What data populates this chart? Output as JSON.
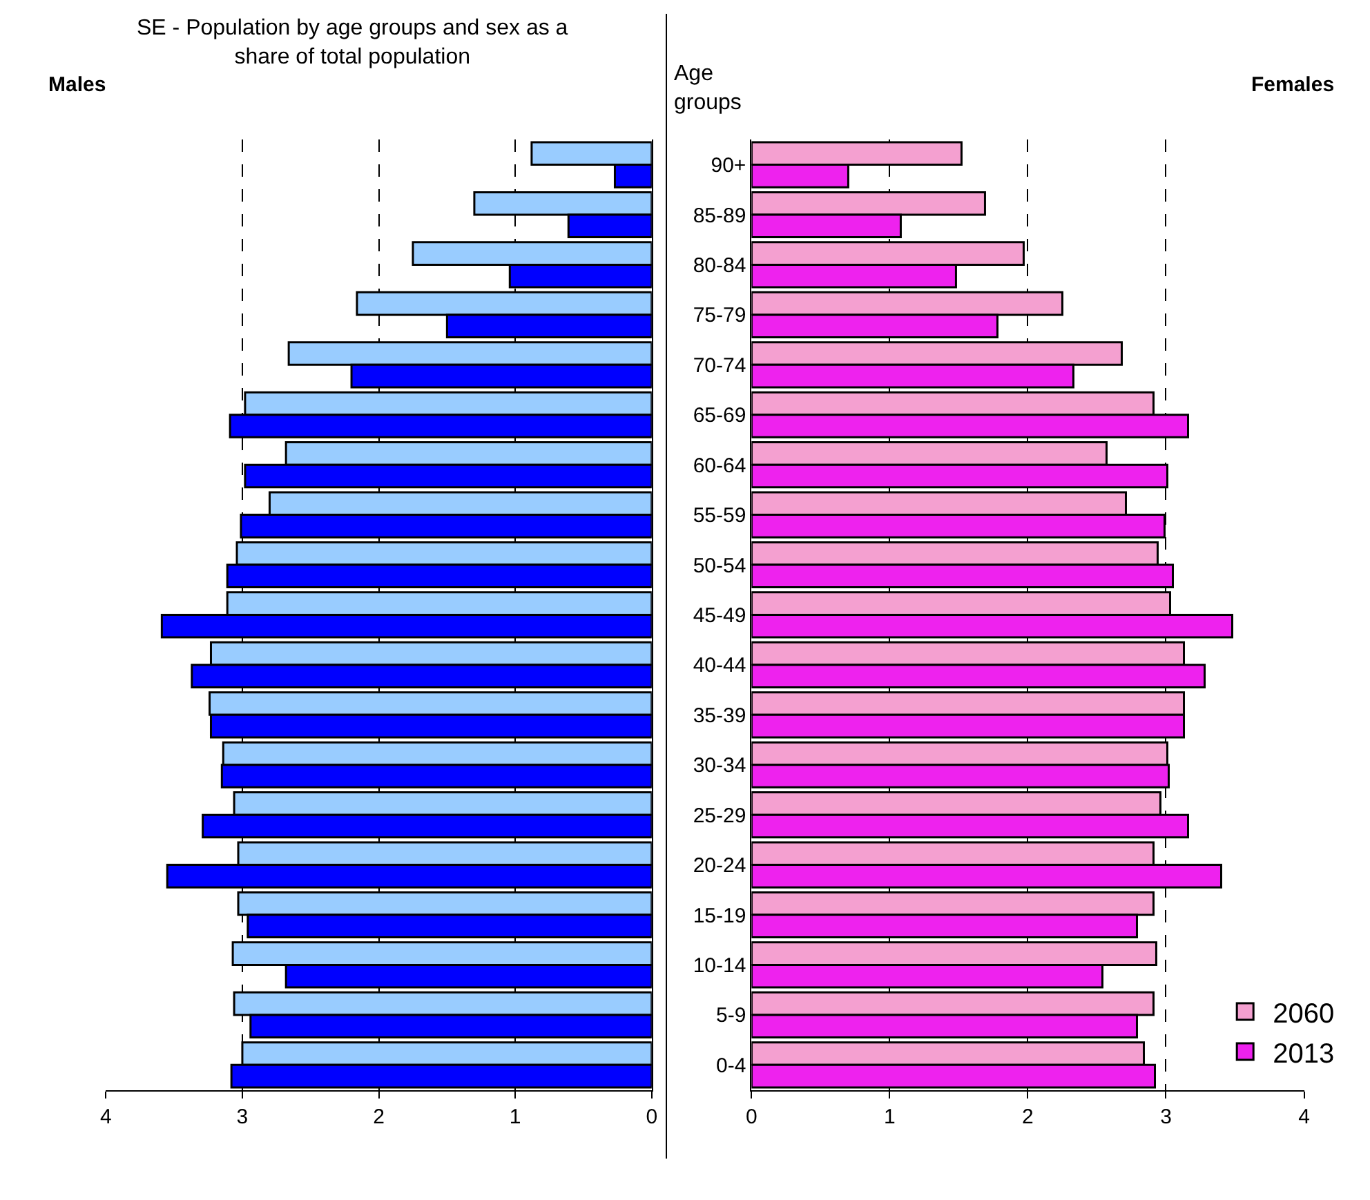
{
  "chart_data": [
    {
      "type": "bar",
      "orientation": "horizontal",
      "title": "SE - Population by age groups and sex as a share of total population",
      "subtitle": "Males",
      "categories": [
        null,
        null,
        null,
        null,
        null,
        null,
        null,
        null,
        null,
        null,
        null,
        null,
        null,
        null,
        null,
        null,
        null,
        null,
        null
      ],
      "series": [
        {
          "color": "#99ccff",
          "values": [
            0.88,
            1.3,
            1.75,
            2.16,
            2.66,
            2.98,
            2.68,
            2.8,
            3.04,
            3.11,
            3.23,
            3.24,
            3.14,
            3.06,
            3.03,
            3.03,
            3.07,
            3.06,
            3.0
          ]
        },
        {
          "color": "#0000ff",
          "values": [
            0.27,
            0.61,
            1.04,
            1.5,
            2.2,
            3.09,
            2.98,
            3.01,
            3.11,
            3.59,
            3.37,
            3.23,
            3.15,
            3.29,
            3.55,
            2.96,
            2.68,
            2.94,
            3.08
          ]
        }
      ],
      "xlim": [
        4,
        0
      ],
      "xticks": [
        4,
        3,
        2,
        1,
        0
      ],
      "grid": "x",
      "tick_labels": "x",
      "legend": false
    },
    {
      "type": "bar",
      "orientation": "horizontal",
      "subtitle": "Females",
      "ylabel": "Age groups",
      "categories": [
        "90+",
        "85-89",
        "80-84",
        "75-79",
        "70-74",
        "65-69",
        "60-64",
        "55-59",
        "50-54",
        "45-49",
        "40-44",
        "35-39",
        "30-34",
        "25-29",
        "20-24",
        "15-19",
        "10-14",
        "5-9",
        "0-4"
      ],
      "series": [
        {
          "name": "2060",
          "color": "#f4a0d0",
          "values": [
            1.52,
            1.69,
            1.97,
            2.25,
            2.68,
            2.91,
            2.57,
            2.71,
            2.94,
            3.03,
            3.13,
            3.13,
            3.01,
            2.96,
            2.91,
            2.91,
            2.93,
            2.91,
            2.84
          ]
        },
        {
          "name": "2013",
          "color": "#ee22ee",
          "values": [
            0.7,
            1.08,
            1.48,
            1.78,
            2.33,
            3.16,
            3.01,
            2.99,
            3.05,
            3.48,
            3.28,
            3.13,
            3.02,
            3.16,
            3.4,
            2.79,
            2.54,
            2.79,
            2.92
          ]
        }
      ],
      "xlim": [
        0,
        4
      ],
      "xticks": [
        0,
        1,
        2,
        3,
        4
      ],
      "grid": "x",
      "legend": "bottom right"
    }
  ]
}
